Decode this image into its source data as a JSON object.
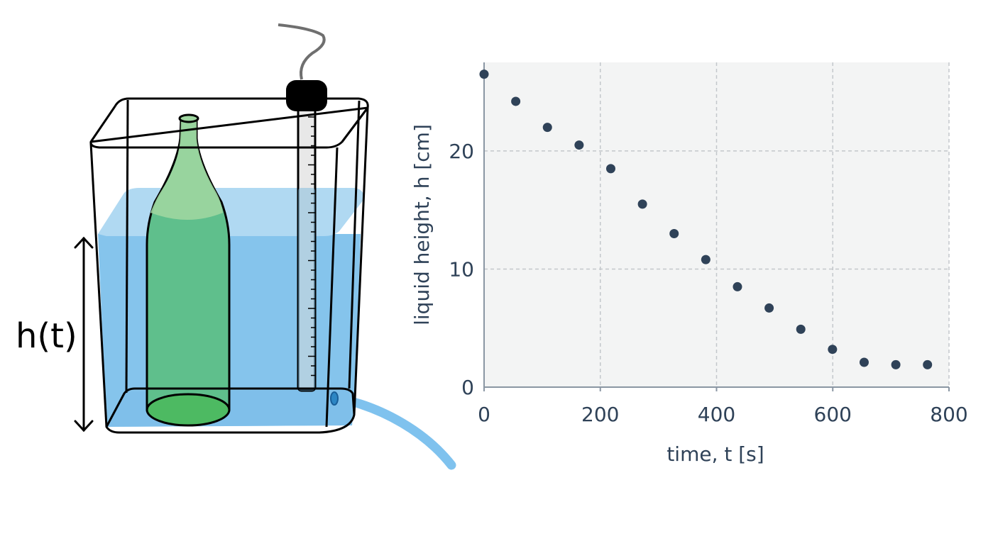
{
  "diagram": {
    "height_label": "h(t)",
    "colors": {
      "water": "#85c4ec",
      "water_surface": "#b0d9f2",
      "bottle": "#5fbf8c",
      "bottle_top": "#9fd6a0",
      "bottle_base": "#4dba62",
      "probe_cap": "#000000",
      "probe_body": "#e8e8e8",
      "cable": "#6f6f6f",
      "outflow": "#7fc2ee"
    }
  },
  "chart_data": {
    "type": "scatter",
    "title": "",
    "xlabel": "time, t [s]",
    "ylabel": "liquid height, h [cm]",
    "xlim": [
      0,
      800
    ],
    "ylim": [
      0,
      27.5
    ],
    "xticks": [
      0,
      200,
      400,
      600,
      800
    ],
    "yticks": [
      0,
      10,
      20
    ],
    "grid": true,
    "series": [
      {
        "x": [
          0,
          54.5,
          109,
          163.5,
          218,
          272.5,
          327,
          381.5,
          436,
          490.5,
          545,
          599.5,
          654,
          708.5,
          763
        ],
        "y": [
          26.5,
          24.2,
          22.0,
          20.5,
          18.5,
          15.5,
          13.0,
          10.8,
          8.5,
          6.7,
          4.9,
          3.2,
          2.1,
          1.9,
          1.9
        ]
      }
    ],
    "colors": {
      "marker": "#2f4258",
      "axis": "#2f4258",
      "plot_bg": "#f3f4f4",
      "grid": "#c3c7cb"
    }
  }
}
